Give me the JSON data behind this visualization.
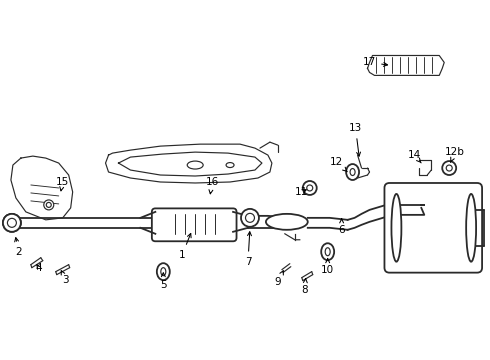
{
  "background_color": "#ffffff",
  "line_color": "#2a2a2a",
  "label_color": "#000000",
  "figsize": [
    4.9,
    3.6
  ],
  "dpi": 100,
  "annotations": [
    [
      "1",
      182,
      98,
      182,
      120
    ],
    [
      "2",
      22,
      75,
      20,
      92
    ],
    [
      "3",
      65,
      60,
      58,
      68
    ],
    [
      "4",
      38,
      68,
      30,
      76
    ],
    [
      "5",
      163,
      48,
      163,
      62
    ],
    [
      "6",
      342,
      138,
      342,
      155
    ],
    [
      "7",
      248,
      88,
      248,
      102
    ],
    [
      "8",
      305,
      52,
      305,
      60
    ],
    [
      "9",
      282,
      62,
      282,
      72
    ],
    [
      "10",
      328,
      72,
      327,
      85
    ],
    [
      "11",
      303,
      145,
      312,
      152
    ],
    [
      "12",
      338,
      162,
      352,
      173
    ],
    [
      "12b",
      455,
      150,
      450,
      162
    ],
    [
      "13",
      355,
      195,
      357,
      178
    ],
    [
      "14",
      416,
      168,
      420,
      175
    ],
    [
      "15",
      63,
      168,
      63,
      178
    ],
    [
      "16",
      212,
      188,
      210,
      198
    ],
    [
      "17",
      369,
      290,
      395,
      298
    ]
  ]
}
